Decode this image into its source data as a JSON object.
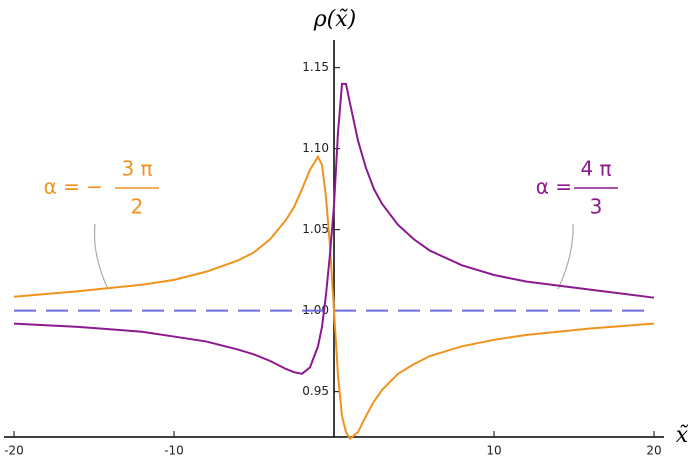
{
  "chart_data": {
    "type": "line",
    "y_label": "ρ(x̃)",
    "x_label": "x̃",
    "x": [
      -20,
      -16,
      -12,
      -10,
      -8,
      -6,
      -5,
      -4,
      -3,
      -2.5,
      -2,
      -1.5,
      -1,
      -0.75,
      -0.5,
      -0.25,
      0,
      0.25,
      0.5,
      0.75,
      1,
      1.5,
      2,
      2.5,
      3,
      4,
      5,
      6,
      8,
      10,
      12,
      16,
      20
    ],
    "series": [
      {
        "name": {
          "prefix": "α = −",
          "numerator": "3 π",
          "denominator": "2"
        },
        "color": "#f0931e",
        "values": [
          1.0086,
          1.012,
          1.016,
          1.019,
          1.024,
          1.031,
          1.036,
          1.044,
          1.056,
          1.064,
          1.075,
          1.087,
          1.095,
          1.09,
          1.07,
          1.04,
          1.0,
          0.96,
          0.935,
          0.925,
          0.921,
          0.925,
          0.935,
          0.944,
          0.951,
          0.961,
          0.967,
          0.972,
          0.978,
          0.982,
          0.985,
          0.989,
          0.992
        ]
      },
      {
        "name": {
          "prefix": "α =",
          "numerator": "4 π",
          "denominator": "3"
        },
        "color": "#8b1a8f",
        "values": [
          0.992,
          0.99,
          0.987,
          0.984,
          0.981,
          0.976,
          0.973,
          0.969,
          0.964,
          0.962,
          0.961,
          0.965,
          0.978,
          0.99,
          1.01,
          1.035,
          1.065,
          1.11,
          1.14,
          1.14,
          1.128,
          1.105,
          1.088,
          1.075,
          1.066,
          1.053,
          1.044,
          1.037,
          1.028,
          1.022,
          1.018,
          1.013,
          1.008
        ]
      }
    ],
    "reference_y": 1,
    "reference_color": "#6b6be0",
    "xlim": [
      -20,
      20
    ],
    "ylim": [
      0.922,
      1.164
    ],
    "xticks": [
      -20,
      -10,
      10,
      20
    ],
    "yticks": [
      0.95,
      {
        "value": 1,
        "label": "1.00"
      },
      1.05,
      {
        "value": 1.1,
        "label": "1.10"
      },
      1.15
    ]
  }
}
